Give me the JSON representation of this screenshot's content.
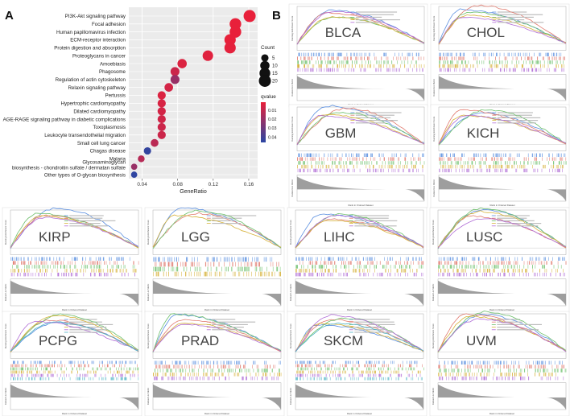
{
  "panel_labels": {
    "a": "A",
    "b": "B"
  },
  "chart_data": [
    {
      "type": "scatter",
      "subtype": "kegg-bubble",
      "title": "",
      "xlabel": "GeneRatio",
      "ylabel": "",
      "xlim": [
        0.025,
        0.17
      ],
      "xticks": [
        0.04,
        0.08,
        0.12,
        0.16
      ],
      "xtick_labels": [
        "0.04",
        "0.08",
        "0.12",
        "0.16"
      ],
      "grid": true,
      "terms": [
        {
          "label": "PI3K-Akt signaling pathway",
          "gene_ratio": 0.161,
          "count": 20,
          "qvalue": 0.001
        },
        {
          "label": "Focal adhesion",
          "gene_ratio": 0.145,
          "count": 18,
          "qvalue": 0.001
        },
        {
          "label": "Human papillomavirus infection",
          "gene_ratio": 0.145,
          "count": 18,
          "qvalue": 0.001
        },
        {
          "label": "ECM-receptor interaction",
          "gene_ratio": 0.139,
          "count": 17,
          "qvalue": 0.001
        },
        {
          "label": "Protein digestion and absorption",
          "gene_ratio": 0.139,
          "count": 17,
          "qvalue": 0.002
        },
        {
          "label": "Proteoglycans in cancer",
          "gene_ratio": 0.114,
          "count": 14,
          "qvalue": 0.003
        },
        {
          "label": "Amoebiasis",
          "gene_ratio": 0.085,
          "count": 10,
          "qvalue": 0.004
        },
        {
          "label": "Phagosome",
          "gene_ratio": 0.077,
          "count": 9,
          "qvalue": 0.008
        },
        {
          "label": "Regulation of actin cytoskeleton",
          "gene_ratio": 0.077,
          "count": 9,
          "qvalue": 0.02
        },
        {
          "label": "Relaxin signaling pathway",
          "gene_ratio": 0.07,
          "count": 8,
          "qvalue": 0.006
        },
        {
          "label": "Pertussis",
          "gene_ratio": 0.062,
          "count": 7,
          "qvalue": 0.004
        },
        {
          "label": "Hypertrophic cardiomyopathy",
          "gene_ratio": 0.062,
          "count": 7,
          "qvalue": 0.005
        },
        {
          "label": "Dilated cardiomyopathy",
          "gene_ratio": 0.062,
          "count": 7,
          "qvalue": 0.006
        },
        {
          "label": "AGE-RAGE signaling pathway in diabetic complications",
          "gene_ratio": 0.062,
          "count": 7,
          "qvalue": 0.007
        },
        {
          "label": "Toxoplasmosis",
          "gene_ratio": 0.062,
          "count": 7,
          "qvalue": 0.008
        },
        {
          "label": "Leukocyte transendothelial migration",
          "gene_ratio": 0.062,
          "count": 7,
          "qvalue": 0.008
        },
        {
          "label": "Small cell lung cancer",
          "gene_ratio": 0.054,
          "count": 6,
          "qvalue": 0.012
        },
        {
          "label": "Chagas disease",
          "gene_ratio": 0.046,
          "count": 5,
          "qvalue": 0.044
        },
        {
          "label": "Malaria",
          "gene_ratio": 0.039,
          "count": 4,
          "qvalue": 0.013
        },
        {
          "label": "Glycosaminoglycan biosynthesis - chondroitin sulfate / dermatan sulfate",
          "label_lines": [
            "Glycosaminoglycan",
            "biosynthesis - chondroitin sulfate / dermatan sulfate"
          ],
          "gene_ratio": 0.031,
          "count": 3,
          "qvalue": 0.02
        },
        {
          "label": "Other types of O-glycan biosynthesis",
          "gene_ratio": 0.031,
          "count": 3,
          "qvalue": 0.045
        }
      ],
      "legend_count": {
        "title": "Count",
        "values": [
          5,
          10,
          15,
          20
        ],
        "labels": [
          "5",
          "10",
          "15",
          "20"
        ]
      },
      "legend_qvalue": {
        "title": "qvalue",
        "ticks": [
          0.01,
          0.02,
          0.03,
          0.04
        ],
        "tick_labels": [
          "0.01",
          "0.02",
          "0.03",
          "0.04"
        ],
        "range": [
          0.001,
          0.046
        ],
        "colors": [
          "#e8203a",
          "#2b46a3"
        ]
      }
    },
    {
      "type": "line",
      "subtype": "gsea-enrichment-grid",
      "ylabel_top": "Running Enrichment Score",
      "ylabel_bottom": "Ranked List Metric",
      "xlabel": "Rank in Ordered Dataset",
      "series_colors": [
        "#5b8fe0",
        "#e07a6e",
        "#6cbf6b",
        "#d6b23a",
        "#b06cd6",
        "#4fb3c4"
      ],
      "panels": [
        {
          "name": "BLCA",
          "lines": 5,
          "peak": 0.14
        },
        {
          "name": "CHOL",
          "lines": 5,
          "peak": 0.16
        },
        {
          "name": "GBM",
          "lines": 5,
          "peak": 0.08
        },
        {
          "name": "KICH",
          "lines": 5,
          "peak": 0.15
        },
        {
          "name": "KIRP",
          "lines": 5,
          "peak": 0.1
        },
        {
          "name": "LGG",
          "lines": 4,
          "peak": 0.12
        },
        {
          "name": "LIHC",
          "lines": 5,
          "peak": 0.16
        },
        {
          "name": "LUSC",
          "lines": 5,
          "peak": 0.16
        },
        {
          "name": "PCPG",
          "lines": 6,
          "peak": 0.22
        },
        {
          "name": "PRAD",
          "lines": 5,
          "peak": 0.22
        },
        {
          "name": "SKCM",
          "lines": 6,
          "peak": 0.14
        },
        {
          "name": "UVM",
          "lines": 5,
          "peak": 0.1
        }
      ]
    }
  ]
}
